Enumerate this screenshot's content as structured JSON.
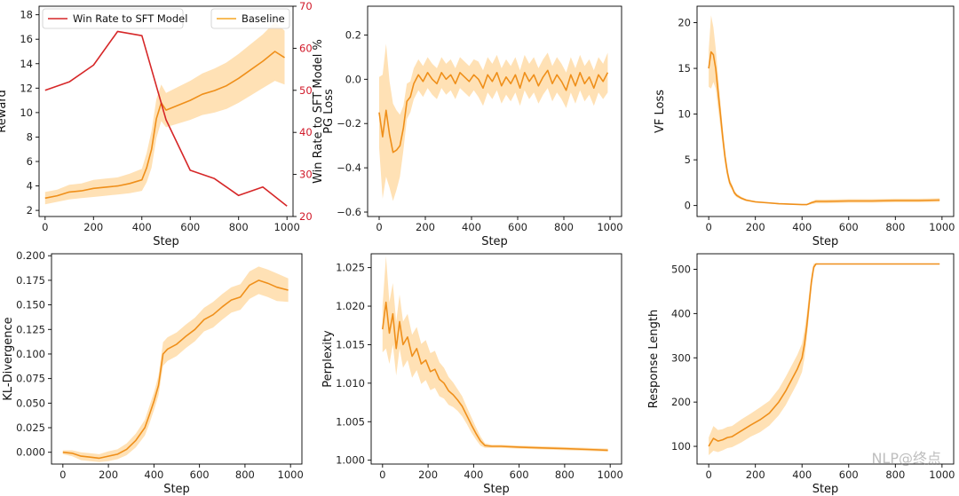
{
  "watermark": "NLP@终点",
  "chart_data": [
    {
      "id": "reward",
      "type": "line",
      "xlabel": "Step",
      "ylabel": "Reward",
      "xlim": [
        -25,
        1025
      ],
      "ylim": [
        1.5,
        18.7
      ],
      "xticks": [
        0,
        200,
        400,
        600,
        800,
        1000
      ],
      "yticks": [
        2,
        4,
        6,
        8,
        10,
        12,
        14,
        16,
        18
      ],
      "right_axis": {
        "ylabel": "Win Rate to SFT Model %",
        "ylim": [
          20,
          70
        ],
        "yticks": [
          20,
          30,
          40,
          50,
          60,
          70
        ],
        "color": "#d11a2a"
      },
      "legend": [
        {
          "label": "Win Rate to SFT Model",
          "color": "#d62728"
        },
        {
          "label": "Baseline",
          "color": "#f5a623"
        }
      ],
      "series": [
        {
          "name": "Baseline",
          "color": "#ef8f1a",
          "band_color": "#ffd9a3",
          "x": [
            0,
            50,
            100,
            150,
            200,
            250,
            300,
            350,
            400,
            420,
            440,
            460,
            480,
            500,
            550,
            600,
            650,
            700,
            750,
            800,
            850,
            900,
            950,
            990
          ],
          "y": [
            3.0,
            3.2,
            3.5,
            3.6,
            3.8,
            3.9,
            4.0,
            4.2,
            4.5,
            5.5,
            7.0,
            9.5,
            10.8,
            10.2,
            10.6,
            11.0,
            11.5,
            11.8,
            12.2,
            12.8,
            13.5,
            14.2,
            15.0,
            14.5
          ],
          "band": [
            0.5,
            0.5,
            0.6,
            0.6,
            0.7,
            0.7,
            0.7,
            0.8,
            0.9,
            1.2,
            1.5,
            1.6,
            1.5,
            1.4,
            1.5,
            1.6,
            1.7,
            1.8,
            1.9,
            2.0,
            2.1,
            2.2,
            2.4,
            2.2
          ]
        },
        {
          "name": "Win Rate to SFT Model",
          "axis": "right",
          "color": "#d62728",
          "x": [
            0,
            100,
            200,
            300,
            400,
            500,
            600,
            700,
            800,
            900,
            1000
          ],
          "y": [
            50.0,
            52.0,
            56.0,
            64.0,
            63.0,
            43.0,
            31.0,
            29.0,
            25.0,
            27.0,
            22.5
          ]
        }
      ]
    },
    {
      "id": "pg_loss",
      "type": "line",
      "xlabel": "Step",
      "ylabel": "PG Loss",
      "xlim": [
        -50,
        1050
      ],
      "ylim": [
        -0.62,
        0.33
      ],
      "xticks": [
        0,
        200,
        400,
        600,
        800,
        1000
      ],
      "yticks": [
        -0.6,
        -0.4,
        -0.2,
        0.0,
        0.2
      ],
      "ytick_labels": [
        "−0.6",
        "−0.4",
        "−0.2",
        "0.0",
        "0.2"
      ],
      "series": [
        {
          "name": "Baseline",
          "color": "#ef8f1a",
          "band_color": "#ffd9a3",
          "x": [
            0,
            15,
            30,
            45,
            60,
            75,
            90,
            105,
            120,
            135,
            150,
            170,
            190,
            210,
            230,
            250,
            270,
            290,
            310,
            330,
            350,
            370,
            390,
            410,
            430,
            450,
            470,
            490,
            510,
            530,
            550,
            570,
            590,
            610,
            630,
            650,
            670,
            690,
            710,
            730,
            750,
            770,
            790,
            810,
            830,
            850,
            870,
            890,
            910,
            930,
            950,
            970,
            990
          ],
          "y": [
            -0.15,
            -0.26,
            -0.14,
            -0.25,
            -0.33,
            -0.32,
            -0.3,
            -0.22,
            -0.1,
            -0.08,
            -0.02,
            0.02,
            -0.01,
            0.03,
            0.0,
            -0.02,
            0.03,
            0.0,
            0.02,
            -0.02,
            0.03,
            0.01,
            -0.01,
            0.02,
            0.0,
            -0.04,
            0.02,
            -0.01,
            0.03,
            -0.03,
            0.01,
            -0.02,
            0.02,
            -0.04,
            0.03,
            -0.01,
            0.02,
            -0.03,
            0.01,
            0.04,
            -0.02,
            0.02,
            -0.01,
            -0.05,
            0.02,
            -0.03,
            0.03,
            -0.02,
            0.01,
            -0.04,
            0.02,
            -0.01,
            0.03
          ],
          "band": [
            0.16,
            0.28,
            0.3,
            0.24,
            0.22,
            0.18,
            0.14,
            0.1,
            0.08,
            0.07,
            0.07,
            0.07,
            0.07,
            0.07,
            0.07,
            0.07,
            0.07,
            0.07,
            0.07,
            0.07,
            0.07,
            0.07,
            0.07,
            0.07,
            0.08,
            0.08,
            0.08,
            0.08,
            0.08,
            0.08,
            0.08,
            0.08,
            0.08,
            0.08,
            0.08,
            0.08,
            0.08,
            0.08,
            0.08,
            0.08,
            0.08,
            0.08,
            0.08,
            0.08,
            0.08,
            0.08,
            0.08,
            0.08,
            0.08,
            0.08,
            0.08,
            0.08,
            0.09
          ]
        }
      ]
    },
    {
      "id": "vf_loss",
      "type": "line",
      "xlabel": "Step",
      "ylabel": "VF Loss",
      "xlim": [
        -50,
        1050
      ],
      "ylim": [
        -1.2,
        21.8
      ],
      "xticks": [
        0,
        200,
        400,
        600,
        800,
        1000
      ],
      "yticks": [
        0,
        5,
        10,
        15,
        20
      ],
      "series": [
        {
          "name": "Baseline",
          "color": "#ef8f1a",
          "band_color": "#ffd9a3",
          "x": [
            0,
            10,
            20,
            30,
            40,
            50,
            60,
            70,
            80,
            90,
            100,
            110,
            120,
            140,
            160,
            180,
            200,
            250,
            300,
            350,
            400,
            420,
            440,
            460,
            500,
            600,
            700,
            800,
            900,
            990
          ],
          "y": [
            15.0,
            16.8,
            16.5,
            15.0,
            12.5,
            10.0,
            7.5,
            5.3,
            3.6,
            2.5,
            2.0,
            1.4,
            1.1,
            0.8,
            0.6,
            0.5,
            0.4,
            0.3,
            0.2,
            0.15,
            0.1,
            0.1,
            0.3,
            0.45,
            0.45,
            0.5,
            0.5,
            0.55,
            0.55,
            0.6
          ],
          "band": [
            2.0,
            4.0,
            3.0,
            2.2,
            1.8,
            1.4,
            1.0,
            0.8,
            0.6,
            0.4,
            0.3,
            0.25,
            0.2,
            0.15,
            0.12,
            0.1,
            0.1,
            0.08,
            0.06,
            0.06,
            0.05,
            0.05,
            0.15,
            0.2,
            0.2,
            0.2,
            0.2,
            0.2,
            0.2,
            0.2
          ]
        }
      ]
    },
    {
      "id": "kl_divergence",
      "type": "line",
      "xlabel": "Step",
      "ylabel": "KL-Divergence",
      "xlim": [
        -50,
        1050
      ],
      "ylim": [
        -0.012,
        0.202
      ],
      "xticks": [
        0,
        200,
        400,
        600,
        800,
        1000
      ],
      "yticks": [
        0.0,
        0.025,
        0.05,
        0.075,
        0.1,
        0.125,
        0.15,
        0.175,
        0.2
      ],
      "ytick_labels": [
        "0.000",
        "0.025",
        "0.050",
        "0.075",
        "0.100",
        "0.125",
        "0.150",
        "0.175",
        "0.200"
      ],
      "series": [
        {
          "name": "Baseline",
          "color": "#ef8f1a",
          "band_color": "#ffd9a3",
          "x": [
            0,
            40,
            80,
            120,
            160,
            200,
            240,
            280,
            320,
            360,
            380,
            400,
            420,
            440,
            460,
            500,
            540,
            580,
            620,
            660,
            700,
            740,
            780,
            820,
            860,
            900,
            940,
            990
          ],
          "y": [
            0.0,
            -0.001,
            -0.004,
            -0.005,
            -0.006,
            -0.004,
            -0.002,
            0.003,
            0.012,
            0.025,
            0.038,
            0.052,
            0.068,
            0.1,
            0.105,
            0.11,
            0.118,
            0.125,
            0.135,
            0.14,
            0.148,
            0.155,
            0.158,
            0.17,
            0.175,
            0.172,
            0.168,
            0.165
          ],
          "band": [
            0.002,
            0.003,
            0.004,
            0.004,
            0.004,
            0.005,
            0.005,
            0.006,
            0.007,
            0.008,
            0.009,
            0.009,
            0.01,
            0.012,
            0.012,
            0.012,
            0.012,
            0.012,
            0.012,
            0.013,
            0.013,
            0.013,
            0.013,
            0.014,
            0.014,
            0.014,
            0.014,
            0.012
          ]
        }
      ]
    },
    {
      "id": "perplexity",
      "type": "line",
      "xlabel": "Step",
      "ylabel": "Perplexity",
      "xlim": [
        -50,
        1050
      ],
      "ylim": [
        0.9995,
        1.0268
      ],
      "xticks": [
        0,
        200,
        400,
        600,
        800,
        1000
      ],
      "yticks": [
        1.0,
        1.005,
        1.01,
        1.015,
        1.02,
        1.025
      ],
      "ytick_labels": [
        "1.000",
        "1.005",
        "1.010",
        "1.015",
        "1.020",
        "1.025"
      ],
      "series": [
        {
          "name": "Baseline",
          "color": "#ef8f1a",
          "band_color": "#ffd9a3",
          "x": [
            0,
            15,
            30,
            45,
            60,
            75,
            90,
            110,
            130,
            150,
            170,
            190,
            210,
            230,
            250,
            270,
            290,
            310,
            330,
            350,
            370,
            390,
            410,
            430,
            450,
            480,
            520,
            600,
            700,
            800,
            900,
            990
          ],
          "y": [
            1.017,
            1.0205,
            1.0165,
            1.019,
            1.0145,
            1.018,
            1.015,
            1.016,
            1.0135,
            1.0145,
            1.0125,
            1.013,
            1.0115,
            1.0118,
            1.0105,
            1.01,
            1.009,
            1.0085,
            1.0078,
            1.007,
            1.0058,
            1.0046,
            1.0035,
            1.0025,
            1.0019,
            1.0018,
            1.0018,
            1.0017,
            1.0016,
            1.0015,
            1.0014,
            1.0013
          ],
          "band": [
            0.003,
            0.006,
            0.004,
            0.004,
            0.0035,
            0.0035,
            0.003,
            0.003,
            0.0028,
            0.0028,
            0.0026,
            0.0026,
            0.0024,
            0.0024,
            0.0022,
            0.002,
            0.0018,
            0.0016,
            0.0014,
            0.0013,
            0.0011,
            0.001,
            0.0008,
            0.0006,
            0.0003,
            0.0002,
            0.0002,
            0.0002,
            0.0002,
            0.0002,
            0.0002,
            0.0002
          ]
        }
      ]
    },
    {
      "id": "response_length",
      "type": "line",
      "xlabel": "Step",
      "ylabel": "Response Length",
      "xlim": [
        -50,
        1050
      ],
      "ylim": [
        60,
        535
      ],
      "xticks": [
        0,
        200,
        400,
        600,
        800,
        1000
      ],
      "yticks": [
        100,
        200,
        300,
        400,
        500
      ],
      "series": [
        {
          "name": "Baseline",
          "color": "#ef8f1a",
          "band_color": "#ffd9a3",
          "x": [
            0,
            20,
            40,
            60,
            80,
            100,
            140,
            180,
            220,
            260,
            300,
            330,
            360,
            380,
            400,
            410,
            420,
            430,
            440,
            450,
            460,
            470,
            500,
            600,
            700,
            800,
            900,
            990
          ],
          "y": [
            100,
            118,
            112,
            115,
            120,
            122,
            135,
            148,
            160,
            175,
            200,
            225,
            255,
            275,
            300,
            330,
            370,
            420,
            470,
            505,
            512,
            512,
            512,
            512,
            512,
            512,
            512,
            512
          ],
          "band": [
            20,
            28,
            25,
            24,
            24,
            24,
            26,
            26,
            28,
            28,
            30,
            32,
            32,
            32,
            32,
            32,
            28,
            24,
            16,
            8,
            2,
            1,
            1,
            1,
            1,
            1,
            1,
            1
          ]
        }
      ]
    }
  ]
}
